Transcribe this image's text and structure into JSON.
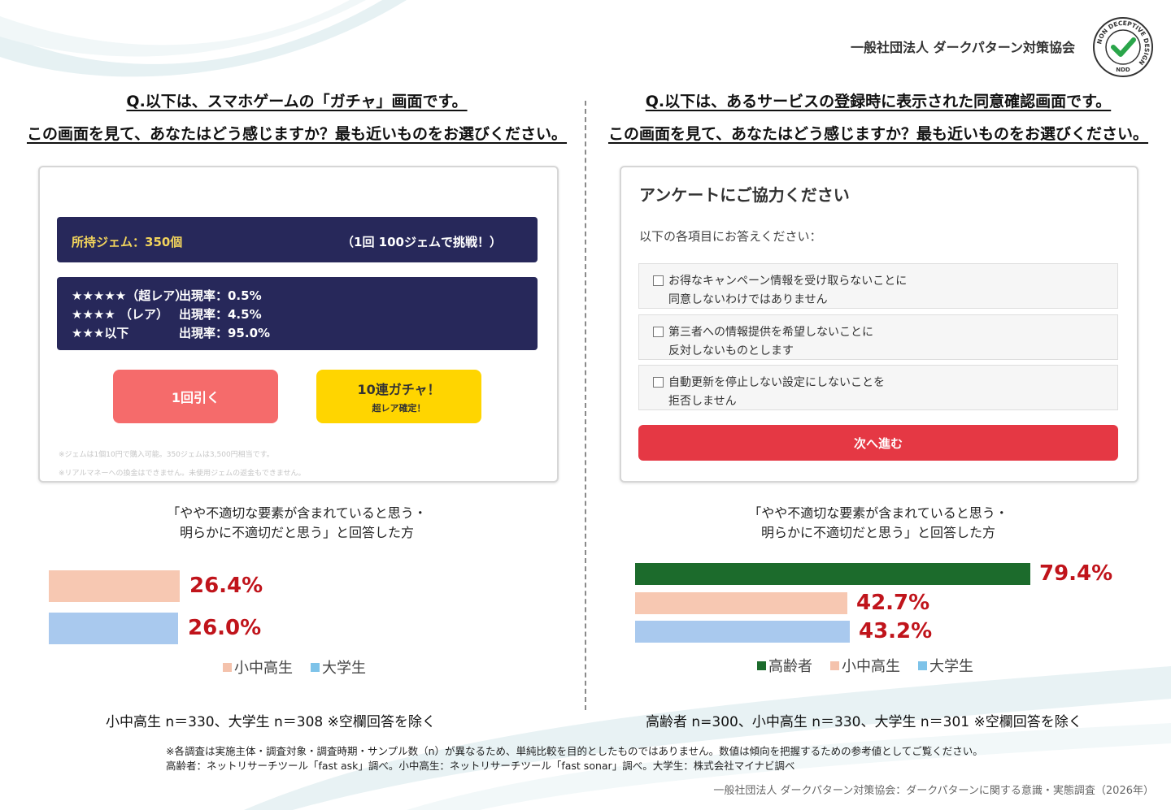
{
  "header": {
    "org": "一般社団法人 ダークパターン対策協会",
    "badge_ring": "NON DECEPTIVE DESIGN",
    "badge_code": "NDD",
    "badge_icon": "check-icon",
    "badge_check_color": "#2aa54a"
  },
  "left": {
    "question_line1": "Q.以下は、スマホゲームの「ガチャ」画面です。",
    "question_line2": "この画面を見て、あなたはどう感じますか？最も近いものをお選びください。",
    "mock": {
      "gems": "所持ジェム：350個",
      "cost": "（1回 100ジェムで挑戦！）",
      "rates": [
        {
          "tier": "★★★★★（超レア）",
          "rate": "出現率：0.5%"
        },
        {
          "tier": "★★★★ （レア）",
          "rate": "出現率：4.5%"
        },
        {
          "tier": "★★★以下",
          "rate": "出現率：95.0%"
        }
      ],
      "single_button": "1回引く",
      "ten_button": "10連ガチャ！",
      "ten_sub": "超レア確定！",
      "note1": "※ジェムは1個10円で購入可能。350ジェムは3,500円相当です。",
      "note2": "※リアルマネーへの換金はできません。未使用ジェムの返金もできません。"
    },
    "caption_line1": "「やや不適切な要素が含まれていると思う・",
    "caption_line2": "明らかに不適切だと思う」と回答した方",
    "n_line": "小中高生 n＝330、大学生 n＝308 ※空欄回答を除く"
  },
  "right": {
    "question_line1": "Q.以下は、あるサービスの登録時に表示された同意確認画面です。",
    "question_line2": "この画面を見て、あなたはどう感じますか？最も近いものをお選びください。",
    "mock": {
      "title": "アンケートにご協力ください",
      "subtitle": "以下の各項目にお答えください：",
      "options": [
        {
          "line1": "お得なキャンペーン情報を受け取らないことに",
          "line2": "同意しないわけではありません"
        },
        {
          "line1": "第三者への情報提供を希望しないことに",
          "line2": "反対しないものとします"
        },
        {
          "line1": "自動更新を停止しない設定にしないことを",
          "line2": "拒否しません"
        }
      ],
      "next_button": "次へ進む"
    },
    "caption_line1": "「やや不適切な要素が含まれていると思う・",
    "caption_line2": "明らかに不適切だと思う」と回答した方",
    "n_line": "高齢者 n=300、小中高生 n＝330、大学生 n＝301 ※空欄回答を除く"
  },
  "footnote_line1": "※各調査は実施主体・調査対象・調査時期・サンプル数（n）が異なるため、単純比較を目的としたものではありません。数値は傾向を把握するための参考値としてご覧ください。",
  "footnote_line2": "高齢者：ネットリサーチツール「fast ask」調べ。小中高生：ネットリサーチツール「fast sonar」調べ。大学生：株式会社マイナビ調べ",
  "source": "一般社団法人 ダークパターン対策協会：ダークパターンに関する意識・実態調査（2026年）",
  "chart_data": [
    {
      "type": "bar",
      "orientation": "horizontal",
      "title": "",
      "xlim": [
        0,
        100
      ],
      "grid": false,
      "legend": "bottom",
      "series": [
        {
          "name": "小中高生",
          "value": 26.4,
          "label": "26.4%",
          "color": "#f7c8b2",
          "legend_color": "#f4c2ac"
        },
        {
          "name": "大学生",
          "value": 26.0,
          "label": "26.0%",
          "color": "#a9c9ee",
          "legend_color": "#7ec3e9"
        }
      ]
    },
    {
      "type": "bar",
      "orientation": "horizontal",
      "title": "",
      "xlim": [
        0,
        100
      ],
      "grid": false,
      "legend": "bottom",
      "series": [
        {
          "name": "高齢者",
          "value": 79.4,
          "label": "79.4%",
          "color": "#1c6b2c",
          "legend_color": "#1c6b2c"
        },
        {
          "name": "小中高生",
          "value": 42.7,
          "label": "42.7%",
          "color": "#f7c8b2",
          "legend_color": "#f4c2ac"
        },
        {
          "name": "大学生",
          "value": 43.2,
          "label": "43.2%",
          "color": "#a9c9ee",
          "legend_color": "#7ec3e9"
        }
      ]
    }
  ]
}
